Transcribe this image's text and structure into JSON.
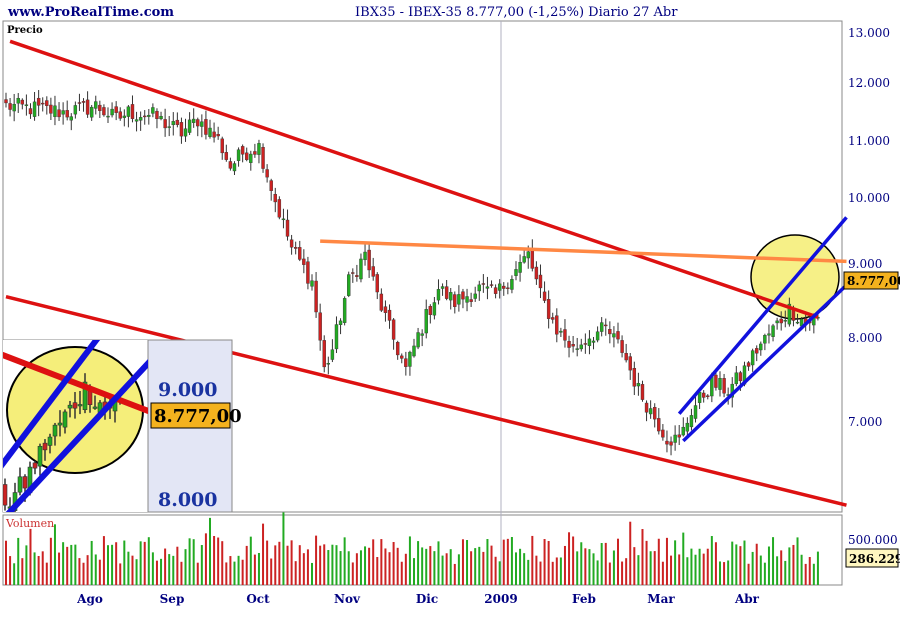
{
  "header": {
    "site": "www.ProRealTime.com",
    "title": "IBX35 - IBEX-35    8.777,00 (-1,25%)    Diario  27 Abr"
  },
  "price_panel": {
    "label": "Precio",
    "current_price_label": "8.777,00",
    "y_ticks": [
      "13.000",
      "12.000",
      "11.000",
      "10.000",
      "9.000",
      "8.000",
      "7.000"
    ],
    "inset": {
      "y_ticks": [
        "9.000",
        "8.000"
      ],
      "price_label": "8.777,00"
    }
  },
  "volume_panel": {
    "label": "Volumen",
    "y_tick": "500.000",
    "current_volume_label": "286.229"
  },
  "x_axis": {
    "labels": [
      "Ago",
      "Sep",
      "Oct",
      "Nov",
      "Dic",
      "2009",
      "Feb",
      "Mar",
      "Abr"
    ]
  },
  "colors": {
    "up": "#22aa22",
    "down": "#cc2222",
    "down_channel": "#dd1111",
    "up_channel": "#1111dd",
    "resistance": "#ff8844",
    "highlight_fill": "#f5ee7a",
    "price_label_bg": "#f4b21e",
    "inset_bg": "#e3e6f5",
    "axis_text": "#000080",
    "volume_label": "#cc3333"
  },
  "chart_data": {
    "type": "candlestick",
    "title": "IBX35 - IBEX-35",
    "frequency": "Diario",
    "last": {
      "date": "27 Abr",
      "close": 8777.0,
      "change_pct": -1.25,
      "volume": 286229
    },
    "ylim": [
      5900,
      13150
    ],
    "y_ticks": [
      7000,
      8000,
      9000,
      10000,
      11000,
      12000,
      13000
    ],
    "volume_ylim": [
      0,
      600000
    ],
    "x_categories": [
      "Ago",
      "Sep",
      "Oct",
      "Nov",
      "Dic",
      "2009",
      "Feb",
      "Mar",
      "Abr"
    ],
    "price_path": [
      [
        0,
        11900
      ],
      [
        8,
        11850
      ],
      [
        15,
        11800
      ],
      [
        22,
        11900
      ],
      [
        27,
        11700
      ],
      [
        30,
        11800
      ],
      [
        36,
        11750
      ],
      [
        43,
        11500
      ],
      [
        47,
        11700
      ],
      [
        52,
        11400
      ],
      [
        55,
        11000
      ],
      [
        58,
        11200
      ],
      [
        62,
        11300
      ],
      [
        66,
        10500
      ],
      [
        70,
        9800
      ],
      [
        75,
        9300
      ],
      [
        78,
        8000
      ],
      [
        80,
        8300
      ],
      [
        84,
        9300
      ],
      [
        88,
        9700
      ],
      [
        91,
        9100
      ],
      [
        94,
        8600
      ],
      [
        98,
        8000
      ],
      [
        101,
        8500
      ],
      [
        106,
        9200
      ],
      [
        110,
        9000
      ],
      [
        116,
        9200
      ],
      [
        120,
        9100
      ],
      [
        124,
        9400
      ],
      [
        128,
        9700
      ],
      [
        131,
        9100
      ],
      [
        135,
        8600
      ],
      [
        139,
        8300
      ],
      [
        143,
        8500
      ],
      [
        147,
        8600
      ],
      [
        151,
        8300
      ],
      [
        155,
        7700
      ],
      [
        159,
        7300
      ],
      [
        162,
        7000
      ],
      [
        165,
        6950
      ],
      [
        168,
        7400
      ],
      [
        173,
        7800
      ],
      [
        177,
        7700
      ],
      [
        180,
        7900
      ],
      [
        184,
        8300
      ],
      [
        188,
        8600
      ],
      [
        192,
        8900
      ],
      [
        196,
        8700
      ],
      [
        199,
        8777
      ]
    ],
    "trendlines": [
      {
        "name": "down_channel_top",
        "color": "down_channel",
        "points": [
          [
            1,
            12850
          ],
          [
            199,
            8777
          ]
        ]
      },
      {
        "name": "down_channel_bottom",
        "color": "down_channel",
        "points": [
          [
            0,
            9080
          ],
          [
            206,
            6000
          ]
        ]
      },
      {
        "name": "resistance",
        "color": "resistance",
        "points": [
          [
            77,
            9900
          ],
          [
            206,
            9600
          ]
        ]
      },
      {
        "name": "up_channel_top",
        "color": "up_channel",
        "points": [
          [
            165,
            7350
          ],
          [
            206,
            10250
          ]
        ]
      },
      {
        "name": "up_channel_bottom",
        "color": "up_channel",
        "points": [
          [
            166,
            6950
          ],
          [
            206,
            9250
          ]
        ]
      }
    ]
  }
}
